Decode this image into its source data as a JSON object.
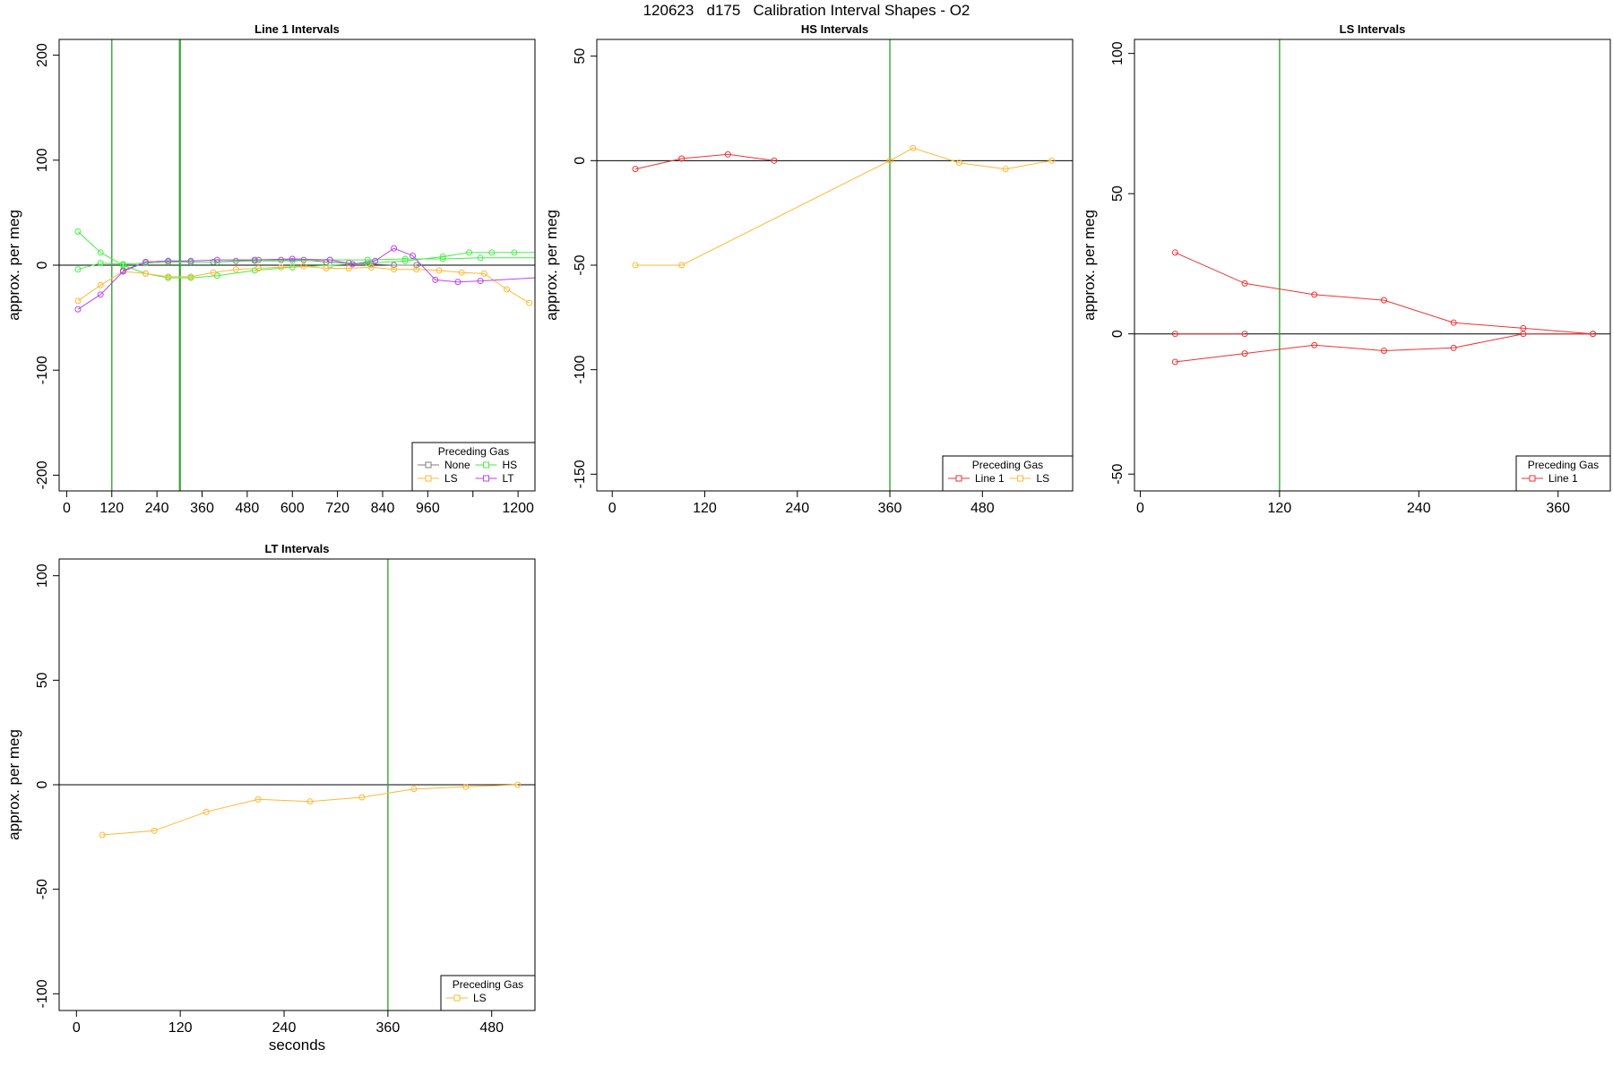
{
  "page_title": "120623   d175   Calibration Interval Shapes - O2",
  "colors": {
    "None": "#7f7f7f",
    "HS": "#44ee44",
    "LS": "#ffb833",
    "LT": "#bb44ee",
    "Line 1": "#ee3333",
    "vline": "#3aa33a"
  },
  "chart_data": [
    {
      "type": "line",
      "title": "Line 1 Intervals",
      "xlabel": "seconds",
      "ylabel": "approx. per meg",
      "xlim": [
        -20,
        1245
      ],
      "ylim": [
        -215,
        215
      ],
      "xticks": [
        0,
        120,
        240,
        360,
        480,
        600,
        720,
        840,
        960,
        1080,
        1200
      ],
      "xtick_labels": [
        "0",
        "120",
        "240",
        "360",
        "480",
        "600",
        "720",
        "840",
        "960",
        "",
        "1200"
      ],
      "yticks": [
        -200,
        -100,
        0,
        100,
        200
      ],
      "vlines": [
        120,
        300,
        302
      ],
      "hline": 0,
      "legend": {
        "title": "Preceding Gas",
        "entries": [
          "None",
          "HS",
          "LS",
          "LT"
        ],
        "placement": "bottom-right"
      },
      "series": [
        {
          "name": "None",
          "points": [
            [
              150,
              -5
            ],
            [
              210,
              3
            ],
            [
              270,
              4
            ],
            [
              330,
              3
            ],
            [
              390,
              3
            ],
            [
              450,
              4
            ],
            [
              510,
              5
            ],
            [
              570,
              5
            ],
            [
              630,
              5
            ],
            [
              690,
              3
            ],
            [
              750,
              2
            ],
            [
              810,
              1
            ],
            [
              870,
              0
            ],
            [
              930,
              0
            ]
          ]
        },
        {
          "name": "HS",
          "points": [
            [
              30,
              32
            ],
            [
              90,
              12
            ],
            [
              150,
              0
            ],
            [
              210,
              -8
            ],
            [
              270,
              -12
            ],
            [
              330,
              -12
            ],
            [
              400,
              -10
            ],
            [
              500,
              -5
            ],
            [
              600,
              -2
            ],
            [
              700,
              0
            ],
            [
              800,
              2
            ],
            [
              900,
              4
            ],
            [
              1000,
              8
            ],
            [
              1070,
              12
            ],
            [
              1130,
              12
            ],
            [
              1190,
              12
            ],
            [
              1245,
              12
            ]
          ]
        },
        {
          "name": "HS",
          "points": [
            [
              30,
              -4
            ],
            [
              90,
              2
            ],
            [
              150,
              1
            ],
            [
              210,
              2
            ],
            [
              270,
              3
            ],
            [
              330,
              3
            ],
            [
              400,
              3
            ],
            [
              500,
              4
            ],
            [
              600,
              4
            ],
            [
              700,
              5
            ],
            [
              800,
              5
            ],
            [
              900,
              6
            ],
            [
              1000,
              6
            ],
            [
              1100,
              7
            ],
            [
              1245,
              7
            ]
          ]
        },
        {
          "name": "LS",
          "points": [
            [
              30,
              -34
            ],
            [
              90,
              -19
            ],
            [
              150,
              -6
            ],
            [
              210,
              -8
            ],
            [
              270,
              -11
            ],
            [
              330,
              -11
            ],
            [
              390,
              -7
            ],
            [
              450,
              -4
            ],
            [
              510,
              -3
            ],
            [
              570,
              -2
            ],
            [
              630,
              -1
            ],
            [
              690,
              -3
            ],
            [
              750,
              -3
            ],
            [
              810,
              -2
            ],
            [
              870,
              -4
            ],
            [
              930,
              -4
            ],
            [
              990,
              -5
            ],
            [
              1050,
              -7
            ],
            [
              1110,
              -8
            ],
            [
              1170,
              -23
            ],
            [
              1230,
              -36
            ]
          ]
        },
        {
          "name": "LT",
          "points": [
            [
              30,
              -42
            ],
            [
              90,
              -28
            ],
            [
              150,
              -6
            ],
            [
              210,
              3
            ],
            [
              270,
              4
            ],
            [
              330,
              4
            ],
            [
              400,
              5
            ],
            [
              500,
              5
            ],
            [
              600,
              6
            ],
            [
              700,
              5
            ],
            [
              760,
              1
            ],
            [
              820,
              4
            ],
            [
              870,
              16
            ],
            [
              920,
              9
            ],
            [
              980,
              -14
            ],
            [
              1040,
              -16
            ],
            [
              1100,
              -15
            ],
            [
              1245,
              -12
            ]
          ]
        }
      ]
    },
    {
      "type": "line",
      "title": "HS Intervals",
      "xlabel": "seconds",
      "ylabel": "approx. per meg",
      "xlim": [
        -20,
        597
      ],
      "ylim": [
        -158,
        58
      ],
      "xticks": [
        0,
        120,
        240,
        360,
        480
      ],
      "xtick_labels": [
        "0",
        "120",
        "240",
        "360",
        "480"
      ],
      "yticks": [
        -150,
        -100,
        -50,
        0,
        50
      ],
      "vlines": [
        360
      ],
      "hline": 0,
      "legend": {
        "title": "Preceding Gas",
        "entries": [
          "Line 1",
          "LS"
        ],
        "placement": "bottom-right"
      },
      "series": [
        {
          "name": "Line 1",
          "points": [
            [
              30,
              -4
            ],
            [
              90,
              1
            ],
            [
              150,
              3
            ],
            [
              210,
              0
            ]
          ]
        },
        {
          "name": "LS",
          "points": [
            [
              30,
              -50
            ],
            [
              90,
              -50
            ],
            [
              360,
              0
            ],
            [
              390,
              6
            ],
            [
              450,
              -1
            ],
            [
              510,
              -4
            ],
            [
              570,
              0
            ]
          ]
        }
      ]
    },
    {
      "type": "line",
      "title": "LS Intervals",
      "xlabel": "seconds",
      "ylabel": "approx. per meg",
      "xlim": [
        -5,
        405
      ],
      "ylim": [
        -56,
        105
      ],
      "xticks": [
        0,
        120,
        240,
        360
      ],
      "xtick_labels": [
        "0",
        "120",
        "240",
        "360"
      ],
      "yticks": [
        -50,
        0,
        50,
        100
      ],
      "vlines": [
        120
      ],
      "hline": 0,
      "legend": {
        "title": "Preceding Gas",
        "entries": [
          "Line 1"
        ],
        "placement": "bottom-right"
      },
      "series": [
        {
          "name": "Line 1",
          "points": [
            [
              30,
              29
            ],
            [
              90,
              18
            ],
            [
              150,
              14
            ],
            [
              210,
              12
            ],
            [
              270,
              4
            ],
            [
              330,
              2
            ],
            [
              390,
              0
            ]
          ]
        },
        {
          "name": "Line 1",
          "points": [
            [
              30,
              0
            ],
            [
              90,
              0
            ]
          ]
        },
        {
          "name": "Line 1",
          "points": [
            [
              30,
              -10
            ],
            [
              90,
              -7
            ],
            [
              150,
              -4
            ],
            [
              210,
              -6
            ],
            [
              270,
              -5
            ],
            [
              330,
              0
            ],
            [
              390,
              0
            ]
          ]
        }
      ]
    },
    {
      "type": "line",
      "title": "LT Intervals",
      "xlabel": "seconds",
      "ylabel": "approx. per meg",
      "xlim": [
        -20,
        530
      ],
      "ylim": [
        -108,
        108
      ],
      "xticks": [
        0,
        120,
        240,
        360,
        480
      ],
      "xtick_labels": [
        "0",
        "120",
        "240",
        "360",
        "480"
      ],
      "yticks": [
        -100,
        -50,
        0,
        50,
        100
      ],
      "vlines": [
        360
      ],
      "hline": 0,
      "legend": {
        "title": "Preceding Gas",
        "entries": [
          "LS"
        ],
        "placement": "bottom-right"
      },
      "series": [
        {
          "name": "LS",
          "points": [
            [
              30,
              -24
            ],
            [
              90,
              -22
            ],
            [
              150,
              -13
            ],
            [
              210,
              -7
            ],
            [
              270,
              -8
            ],
            [
              330,
              -6
            ],
            [
              390,
              -2
            ],
            [
              450,
              -1
            ],
            [
              510,
              0
            ]
          ]
        }
      ]
    }
  ]
}
